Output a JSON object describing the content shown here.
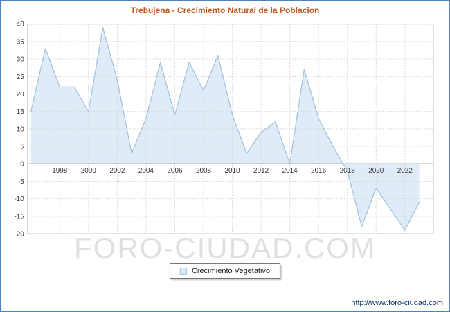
{
  "page": {
    "watermark": "FORO-CIUDAD.COM",
    "footer_url": "http://www.foro-ciudad.com"
  },
  "legend": {
    "label": "Crecimiento Vegetativo"
  },
  "chart_data": {
    "type": "area",
    "title": "Trebujena - Crecimiento Natural de la Poblacion",
    "x": [
      1996,
      1997,
      1998,
      1999,
      2000,
      2001,
      2002,
      2003,
      2004,
      2005,
      2006,
      2007,
      2008,
      2009,
      2010,
      2011,
      2012,
      2013,
      2014,
      2015,
      2016,
      2017,
      2018,
      2019,
      2020,
      2021,
      2022,
      2023
    ],
    "series": [
      {
        "name": "Crecimiento Vegetativo",
        "values": [
          15,
          33,
          22,
          22,
          15,
          39,
          24,
          3,
          13,
          29,
          14,
          29,
          21,
          31,
          14,
          3,
          9,
          12,
          0,
          27,
          13,
          5,
          -2,
          -18,
          -7,
          -13,
          -19,
          -11
        ]
      }
    ],
    "ylim": [
      -20,
      40
    ],
    "ytick_step": 5,
    "xticks": [
      1998,
      2000,
      2002,
      2004,
      2006,
      2008,
      2010,
      2012,
      2014,
      2016,
      2018,
      2020,
      2022
    ],
    "grid": true,
    "legend_position": "bottom",
    "colors": {
      "line": "#a3c3e0",
      "fill": "#dce9f5",
      "title": "#c05a1e",
      "page_border": "#4f81bd",
      "grid": "#d9d9d9",
      "axis": "#808080",
      "plot_border": "#c8c8c8",
      "tick_text": "#333333",
      "watermark": "#e0e0e0",
      "footer": "#003366"
    }
  }
}
